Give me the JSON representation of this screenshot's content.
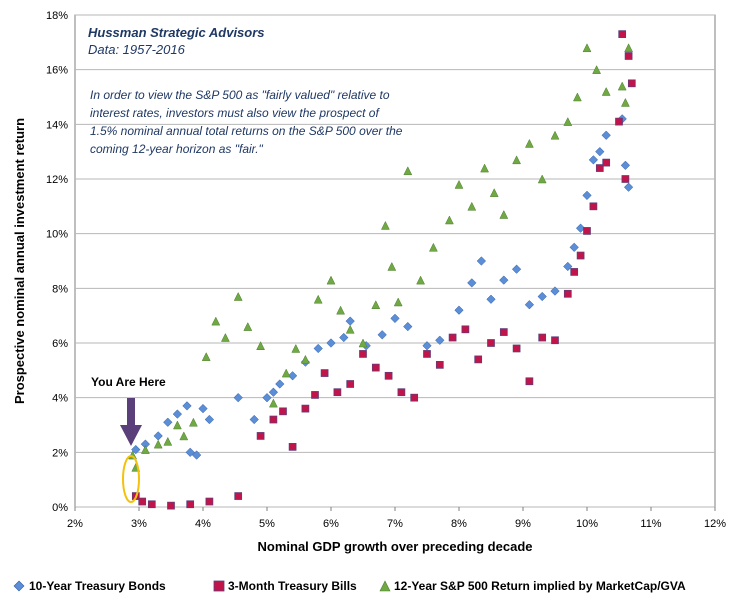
{
  "chart_data": {
    "type": "scatter",
    "xlabel": "Nominal GDP growth over preceding decade",
    "ylabel": "Prospective nominal annual investment return",
    "x_unit": "%",
    "y_unit": "%",
    "xlim": [
      2,
      12
    ],
    "ylim": [
      0,
      18
    ],
    "x_ticks": [
      "2%",
      "3%",
      "4%",
      "5%",
      "6%",
      "7%",
      "8%",
      "9%",
      "10%",
      "11%",
      "12%"
    ],
    "y_ticks": [
      "0%",
      "2%",
      "4%",
      "6%",
      "8%",
      "10%",
      "12%",
      "14%",
      "16%",
      "18%"
    ],
    "grid": true,
    "legend_position": "bottom",
    "annotations": {
      "source_title": "Hussman Strategic Advisors",
      "source_data": "Data: 1957-2016",
      "body_lines": [
        "In order to view the S&P 500 as \"fairly valued\" relative to",
        "interest rates, investors must also view the prospect of",
        "1.5% nominal annual total returns on the S&P 500 over the",
        "coming 12-year horizon as \"fair.\""
      ],
      "callout": "You Are Here"
    },
    "series": [
      {
        "name": "10-Year Treasury Bonds",
        "marker": "diamond",
        "color": "#5b8ed6",
        "points": [
          [
            2.95,
            2.1
          ],
          [
            3.1,
            2.3
          ],
          [
            3.3,
            2.6
          ],
          [
            3.45,
            3.1
          ],
          [
            3.6,
            3.4
          ],
          [
            3.75,
            3.7
          ],
          [
            3.8,
            2.0
          ],
          [
            3.9,
            1.9
          ],
          [
            4.0,
            3.6
          ],
          [
            4.1,
            3.2
          ],
          [
            4.55,
            4.0
          ],
          [
            4.8,
            3.2
          ],
          [
            5.0,
            4.0
          ],
          [
            5.1,
            4.2
          ],
          [
            5.2,
            4.5
          ],
          [
            5.4,
            4.8
          ],
          [
            5.6,
            5.3
          ],
          [
            5.8,
            5.8
          ],
          [
            6.0,
            6.0
          ],
          [
            6.2,
            6.2
          ],
          [
            6.3,
            6.8
          ],
          [
            6.55,
            5.9
          ],
          [
            6.8,
            6.3
          ],
          [
            7.0,
            6.9
          ],
          [
            7.2,
            6.6
          ],
          [
            7.5,
            5.9
          ],
          [
            7.7,
            6.1
          ],
          [
            8.0,
            7.2
          ],
          [
            8.2,
            8.2
          ],
          [
            8.35,
            9.0
          ],
          [
            8.5,
            7.6
          ],
          [
            8.7,
            8.3
          ],
          [
            8.9,
            8.7
          ],
          [
            9.1,
            7.4
          ],
          [
            9.3,
            7.7
          ],
          [
            9.5,
            7.9
          ],
          [
            9.7,
            8.8
          ],
          [
            9.8,
            9.5
          ],
          [
            9.9,
            10.2
          ],
          [
            10.0,
            11.4
          ],
          [
            10.1,
            12.7
          ],
          [
            10.2,
            13.0
          ],
          [
            10.3,
            13.6
          ],
          [
            10.6,
            12.5
          ],
          [
            10.65,
            11.7
          ],
          [
            10.55,
            14.2
          ]
        ]
      },
      {
        "name": "3-Month Treasury Bills",
        "marker": "square",
        "color": "#c0144b",
        "points": [
          [
            2.95,
            0.4
          ],
          [
            3.05,
            0.2
          ],
          [
            3.2,
            0.1
          ],
          [
            3.5,
            0.05
          ],
          [
            3.8,
            0.1
          ],
          [
            4.1,
            0.2
          ],
          [
            4.55,
            0.4
          ],
          [
            4.9,
            2.6
          ],
          [
            5.1,
            3.2
          ],
          [
            5.25,
            3.5
          ],
          [
            5.4,
            2.2
          ],
          [
            5.6,
            3.6
          ],
          [
            5.75,
            4.1
          ],
          [
            5.9,
            4.9
          ],
          [
            6.1,
            4.2
          ],
          [
            6.3,
            4.5
          ],
          [
            6.5,
            5.6
          ],
          [
            6.7,
            5.1
          ],
          [
            6.9,
            4.8
          ],
          [
            7.1,
            4.2
          ],
          [
            7.3,
            4.0
          ],
          [
            7.5,
            5.6
          ],
          [
            7.7,
            5.2
          ],
          [
            7.9,
            6.2
          ],
          [
            8.1,
            6.5
          ],
          [
            8.3,
            5.4
          ],
          [
            8.5,
            6.0
          ],
          [
            8.7,
            6.4
          ],
          [
            8.9,
            5.8
          ],
          [
            9.1,
            4.6
          ],
          [
            9.3,
            6.2
          ],
          [
            9.5,
            6.1
          ],
          [
            9.7,
            7.8
          ],
          [
            9.8,
            8.6
          ],
          [
            9.9,
            9.2
          ],
          [
            10.0,
            10.1
          ],
          [
            10.1,
            11.0
          ],
          [
            10.2,
            12.4
          ],
          [
            10.3,
            12.6
          ],
          [
            10.55,
            17.3
          ],
          [
            10.65,
            16.5
          ],
          [
            10.6,
            12.0
          ],
          [
            10.5,
            14.1
          ],
          [
            10.7,
            15.5
          ]
        ]
      },
      {
        "name": "12-Year S&P 500 Return implied by MarketCap/GVA",
        "marker": "triangle",
        "color": "#70a844",
        "points": [
          [
            2.9,
            1.9
          ],
          [
            2.95,
            1.45
          ],
          [
            3.1,
            2.1
          ],
          [
            3.3,
            2.3
          ],
          [
            3.45,
            2.4
          ],
          [
            3.6,
            3.0
          ],
          [
            3.7,
            2.6
          ],
          [
            3.85,
            3.1
          ],
          [
            4.05,
            5.5
          ],
          [
            4.2,
            6.8
          ],
          [
            4.35,
            6.2
          ],
          [
            4.55,
            7.7
          ],
          [
            4.7,
            6.6
          ],
          [
            4.9,
            5.9
          ],
          [
            5.1,
            3.8
          ],
          [
            5.3,
            4.9
          ],
          [
            5.45,
            5.8
          ],
          [
            5.6,
            5.4
          ],
          [
            5.8,
            7.6
          ],
          [
            6.0,
            8.3
          ],
          [
            6.15,
            7.2
          ],
          [
            6.3,
            6.5
          ],
          [
            6.5,
            6.0
          ],
          [
            6.7,
            7.4
          ],
          [
            6.85,
            10.3
          ],
          [
            6.95,
            8.8
          ],
          [
            7.05,
            7.5
          ],
          [
            7.2,
            12.3
          ],
          [
            7.4,
            8.3
          ],
          [
            7.6,
            9.5
          ],
          [
            7.85,
            10.5
          ],
          [
            8.0,
            11.8
          ],
          [
            8.2,
            11.0
          ],
          [
            8.4,
            12.4
          ],
          [
            8.55,
            11.5
          ],
          [
            8.7,
            10.7
          ],
          [
            8.9,
            12.7
          ],
          [
            9.1,
            13.3
          ],
          [
            9.3,
            12.0
          ],
          [
            9.5,
            13.6
          ],
          [
            9.7,
            14.1
          ],
          [
            9.85,
            15.0
          ],
          [
            10.0,
            16.8
          ],
          [
            10.15,
            16.0
          ],
          [
            10.3,
            15.2
          ],
          [
            10.55,
            15.4
          ],
          [
            10.65,
            16.8
          ],
          [
            10.6,
            14.8
          ]
        ]
      }
    ]
  }
}
